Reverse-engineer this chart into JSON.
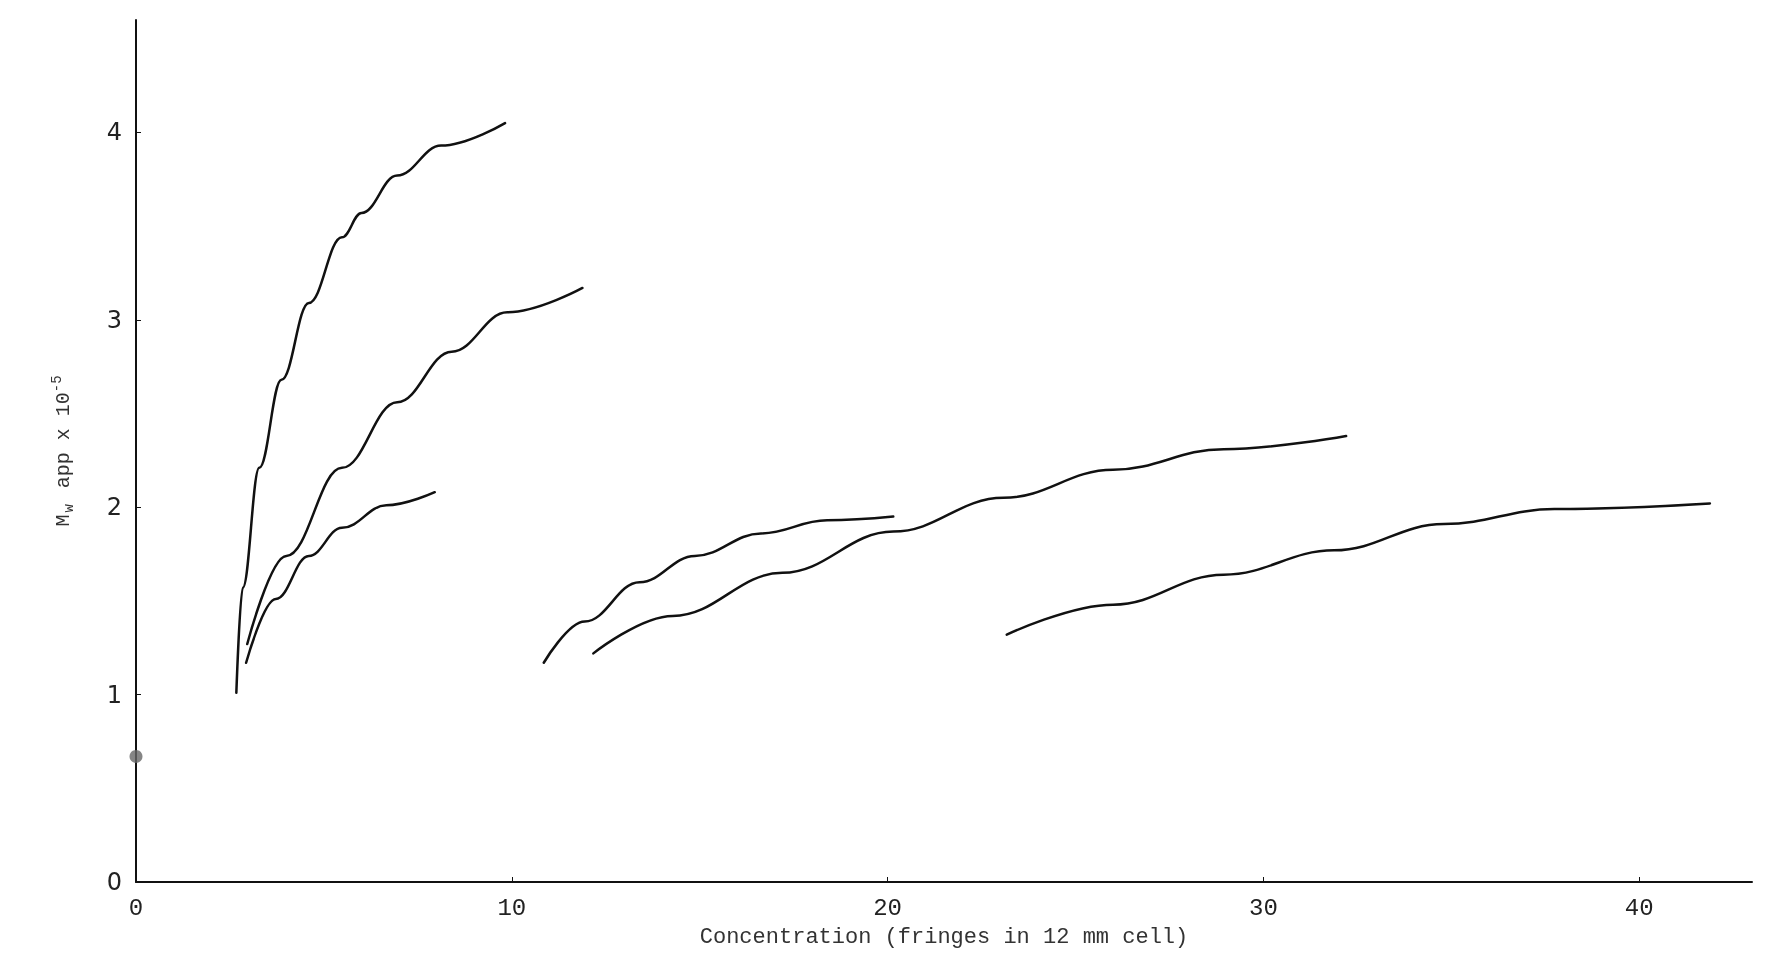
{
  "chart_data": {
    "type": "line",
    "xlabel": "Concentration (fringes in 12 mm cell)",
    "ylabel": "M$_{w}$ app x 10$^{-5}$",
    "xlim": [
      0,
      43
    ],
    "ylim": [
      0,
      4.6
    ],
    "xticks": [
      0,
      10,
      20,
      30,
      40
    ],
    "yticks": [
      0,
      1,
      2,
      3,
      4
    ],
    "grid": false,
    "marker": "none",
    "line_style": "solid",
    "series": [
      {
        "color": "#111111",
        "x": [
          2.67,
          2.84,
          3.28,
          3.87,
          4.6,
          5.48,
          6.0,
          6.95,
          8.12,
          9.82
        ],
        "values": [
          1.01,
          1.57,
          2.21,
          2.68,
          3.09,
          3.44,
          3.57,
          3.77,
          3.93,
          4.05
        ]
      },
      {
        "color": "#111111",
        "x": [
          2.96,
          4.0,
          5.48,
          6.95,
          8.4,
          9.88,
          11.88
        ],
        "values": [
          1.27,
          1.74,
          2.21,
          2.56,
          2.83,
          3.04,
          3.17
        ]
      },
      {
        "color": "#111111",
        "x": [
          2.93,
          3.72,
          4.6,
          5.48,
          6.66,
          7.95
        ],
        "values": [
          1.17,
          1.51,
          1.74,
          1.89,
          2.01,
          2.08
        ]
      },
      {
        "color": "#111111",
        "x": [
          10.85,
          11.94,
          13.4,
          14.87,
          16.63,
          18.39,
          20.15
        ],
        "values": [
          1.17,
          1.39,
          1.6,
          1.74,
          1.86,
          1.93,
          1.95
        ]
      },
      {
        "color": "#111111",
        "x": [
          12.17,
          14.28,
          17.2,
          20.15,
          23.08,
          26.0,
          28.94,
          32.2
        ],
        "values": [
          1.22,
          1.42,
          1.65,
          1.87,
          2.05,
          2.2,
          2.31,
          2.38
        ]
      },
      {
        "color": "#111111",
        "x": [
          23.17,
          26.0,
          28.94,
          31.88,
          34.8,
          37.74,
          41.88
        ],
        "values": [
          1.32,
          1.48,
          1.64,
          1.77,
          1.91,
          1.99,
          2.02
        ]
      },
      {
        "type": "scatter",
        "marker": "circle",
        "color": "#666666",
        "x": [
          0
        ],
        "values": [
          0.67
        ]
      }
    ]
  }
}
